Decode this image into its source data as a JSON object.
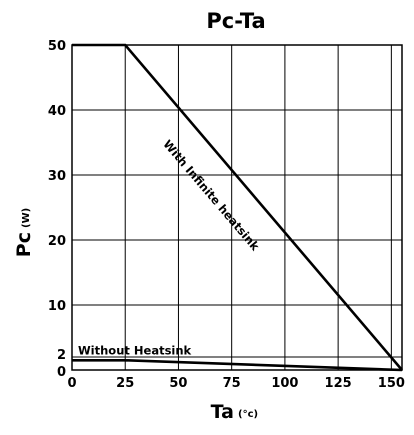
{
  "chart_data": {
    "type": "line",
    "title": "Pc-Ta",
    "xlabel": "Ta",
    "xunit": "(°c)",
    "ylabel": "Pc",
    "yunit": "(W)",
    "xlim": [
      0,
      155
    ],
    "ylim": [
      0,
      50
    ],
    "x_ticks": [
      0,
      25,
      50,
      75,
      100,
      125,
      150
    ],
    "y_ticks": [
      0,
      2,
      10,
      20,
      30,
      40,
      50
    ],
    "grid": true,
    "series": [
      {
        "name": "With Infinite heatsink",
        "x": [
          0,
          25,
          155
        ],
        "y": [
          50,
          50,
          0
        ]
      },
      {
        "name": "Without Heatsink",
        "x": [
          0,
          25,
          155
        ],
        "y": [
          1.5,
          1.5,
          0
        ]
      }
    ]
  },
  "colors": {
    "line": "#000000",
    "background": "#ffffff"
  }
}
